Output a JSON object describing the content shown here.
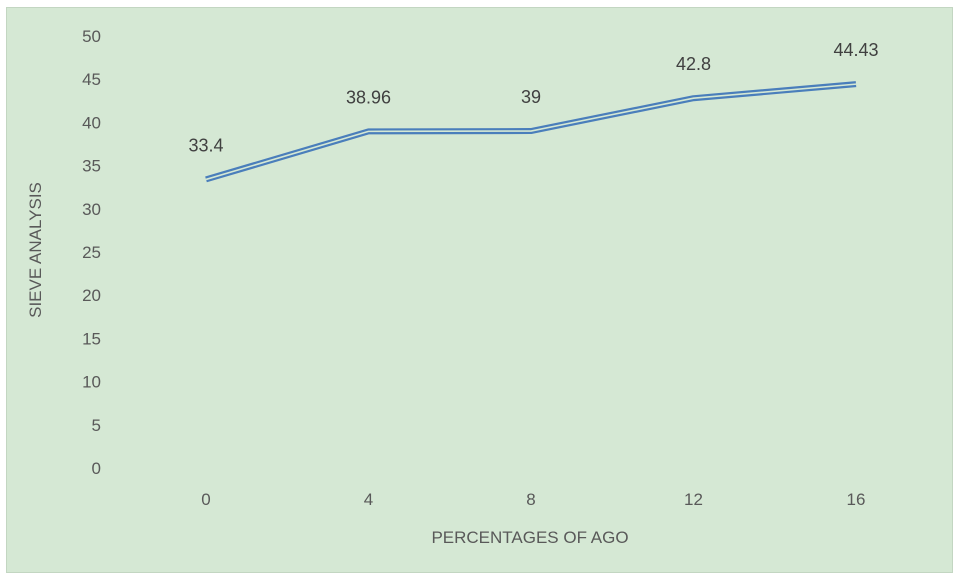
{
  "chart_data": {
    "type": "line",
    "categories": [
      "0",
      "4",
      "8",
      "12",
      "16"
    ],
    "series": [
      {
        "values": [
          33.4,
          38.96,
          39,
          42.8,
          44.43
        ]
      }
    ],
    "data_labels": [
      "33.4",
      "38.96",
      "39",
      "42.8",
      "44.43"
    ],
    "y_ticks": [
      "0",
      "5",
      "10",
      "15",
      "20",
      "25",
      "30",
      "35",
      "40",
      "45",
      "50"
    ],
    "xlabel": "PERCENTAGES OF AGO",
    "ylabel": "SIEVE ANALYSIS",
    "ylim": [
      0,
      50
    ],
    "grid": false,
    "legend": "none",
    "colors": {
      "line": "#4a7ebb",
      "background": "#d5e8d4",
      "text": "#595959"
    }
  }
}
